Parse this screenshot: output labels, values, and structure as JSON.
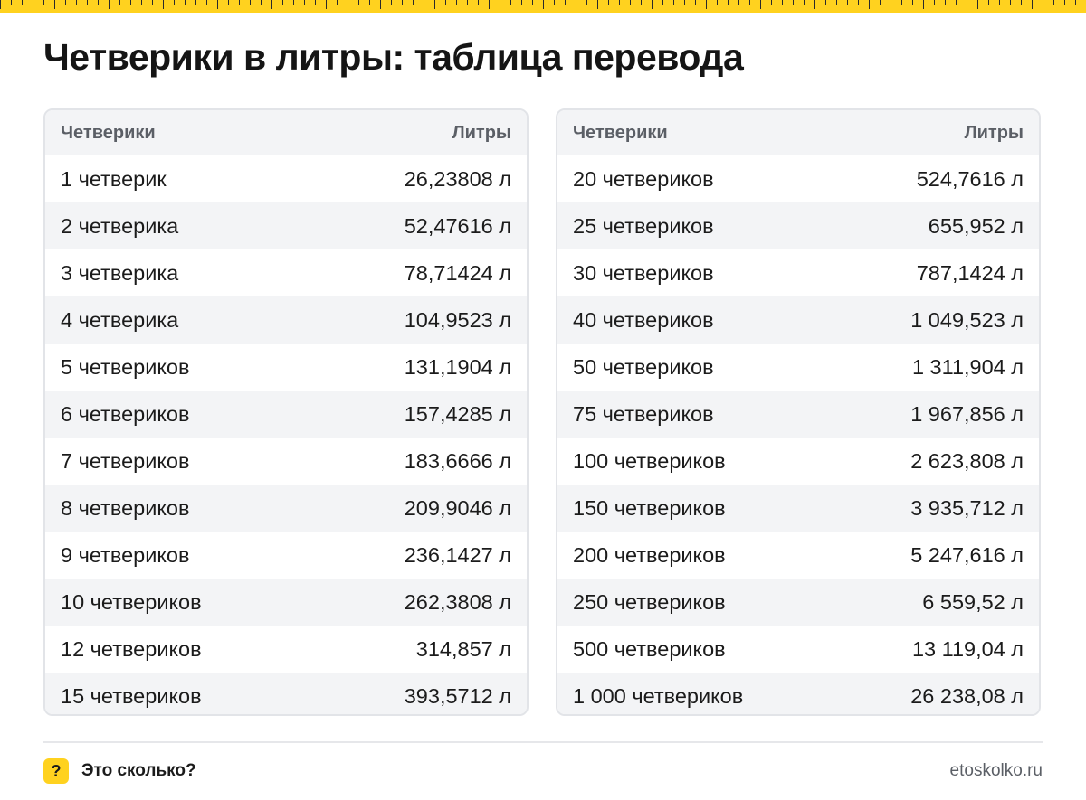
{
  "title": "Четверики в литры: таблица перевода",
  "table_left": {
    "headers": [
      "Четверики",
      "Литры"
    ],
    "rows": [
      [
        "1 четверик",
        "26,23808 л"
      ],
      [
        "2 четверика",
        "52,47616 л"
      ],
      [
        "3 четверика",
        "78,71424 л"
      ],
      [
        "4 четверика",
        "104,9523 л"
      ],
      [
        "5 четвериков",
        "131,1904 л"
      ],
      [
        "6 четвериков",
        "157,4285 л"
      ],
      [
        "7 четвериков",
        "183,6666 л"
      ],
      [
        "8 четвериков",
        "209,9046 л"
      ],
      [
        "9 четвериков",
        "236,1427 л"
      ],
      [
        "10 четвериков",
        "262,3808 л"
      ],
      [
        "12 четвериков",
        "314,857 л"
      ],
      [
        "15 четвериков",
        "393,5712 л"
      ]
    ]
  },
  "table_right": {
    "headers": [
      "Четверики",
      "Литры"
    ],
    "rows": [
      [
        "20 четвериков",
        "524,7616 л"
      ],
      [
        "25 четвериков",
        "655,952 л"
      ],
      [
        "30 четвериков",
        "787,1424 л"
      ],
      [
        "40 четвериков",
        "1 049,523 л"
      ],
      [
        "50 четвериков",
        "1 311,904 л"
      ],
      [
        "75 четвериков",
        "1 967,856 л"
      ],
      [
        "100 четвериков",
        "2 623,808 л"
      ],
      [
        "150 четвериков",
        "3 935,712 л"
      ],
      [
        "200 четвериков",
        "5 247,616 л"
      ],
      [
        "250 четвериков",
        "6 559,52 л"
      ],
      [
        "500 четвериков",
        "13 119,04 л"
      ],
      [
        "1 000 четвериков",
        "26 238,08 л"
      ]
    ]
  },
  "footer": {
    "brand_badge": "?",
    "brand_name": "Это сколько?",
    "site": "etoskolko.ru"
  },
  "colors": {
    "accent": "#ffd21f",
    "header_bg": "#f3f4f6",
    "border": "#e2e4e8"
  }
}
